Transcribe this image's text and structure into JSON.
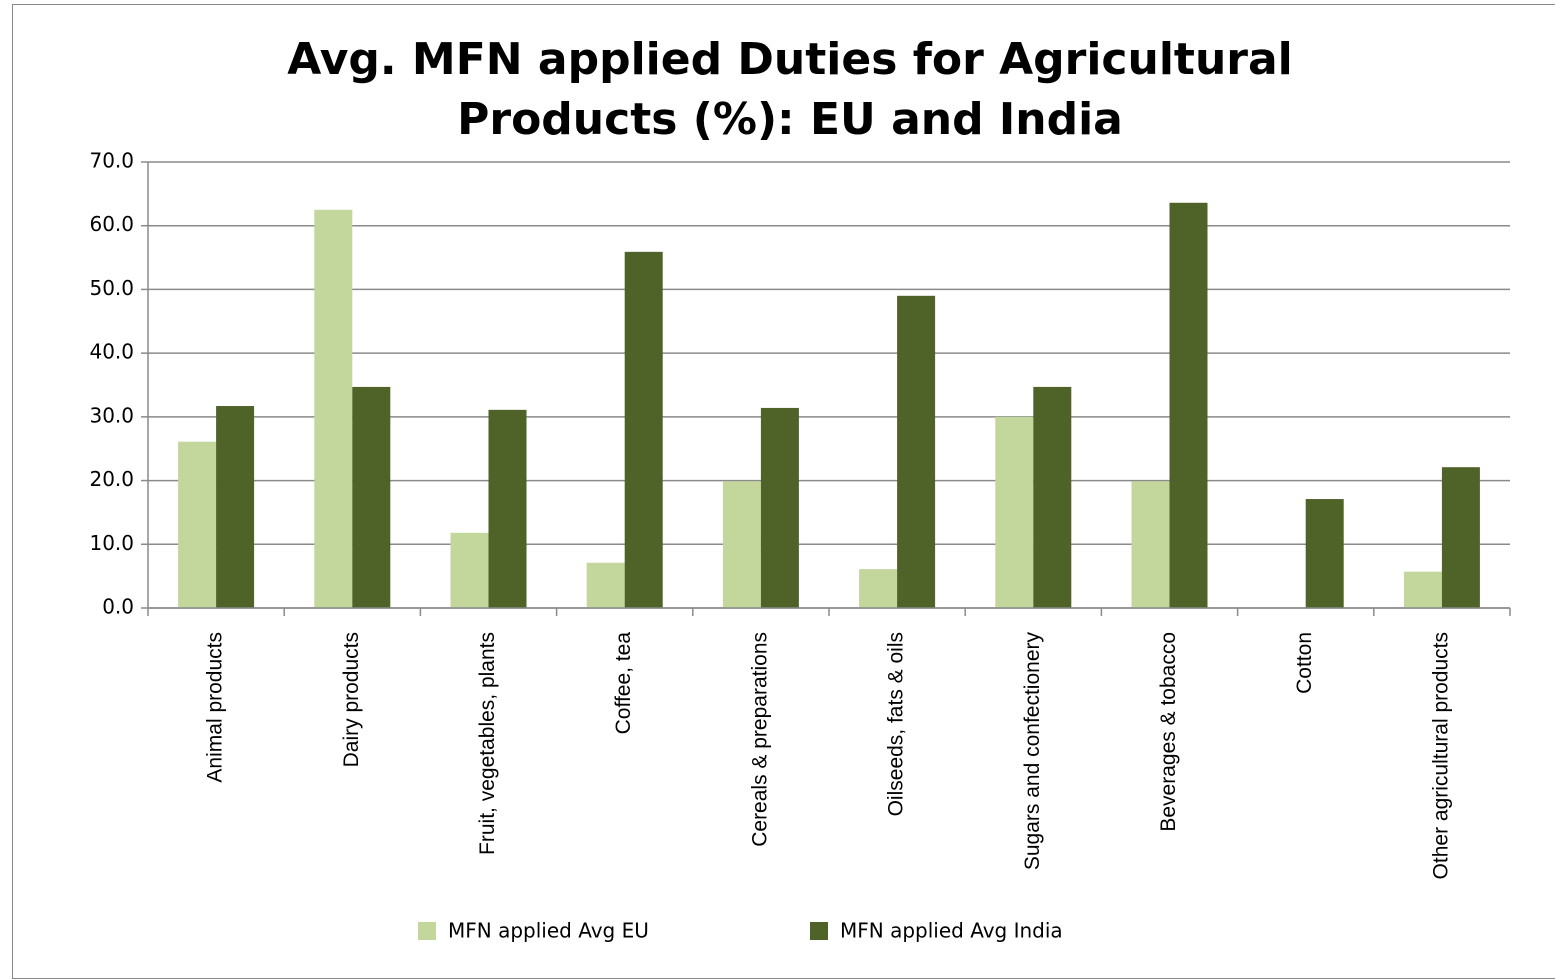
{
  "chart_data": {
    "type": "bar",
    "title": "Avg. MFN applied Duties for Agricultural Products (%): EU and India",
    "categories": [
      "Animal products",
      "Dairy products",
      "Fruit, vegetables, plants",
      "Coffee, tea",
      "Cereals & preparations",
      "Oilseeds, fats & oils",
      "Sugars and confectionery",
      "Beverages & tobacco",
      "Cotton",
      "Other agricultural products"
    ],
    "series": [
      {
        "name": "MFN applied Avg EU",
        "color": "#c3d69b",
        "values": [
          26.1,
          62.5,
          11.8,
          7.1,
          19.9,
          6.1,
          30.0,
          19.9,
          0,
          5.7
        ]
      },
      {
        "name": "MFN applied Avg India",
        "color": "#4f6228",
        "values": [
          31.7,
          34.7,
          31.1,
          55.9,
          31.4,
          49.0,
          34.7,
          63.6,
          17.1,
          22.1
        ]
      }
    ],
    "ylim": [
      0,
      70
    ],
    "yticks": [
      {
        "value": 0,
        "label": "0.0"
      },
      {
        "value": 10,
        "label": "10.0"
      },
      {
        "value": 20,
        "label": "20.0"
      },
      {
        "value": 30,
        "label": "30.0"
      },
      {
        "value": 40,
        "label": "40.0"
      },
      {
        "value": 50,
        "label": "50.0"
      },
      {
        "value": 60,
        "label": "60.0"
      },
      {
        "value": 70,
        "label": "70.0"
      }
    ],
    "grid": true,
    "legend": "bottom"
  }
}
